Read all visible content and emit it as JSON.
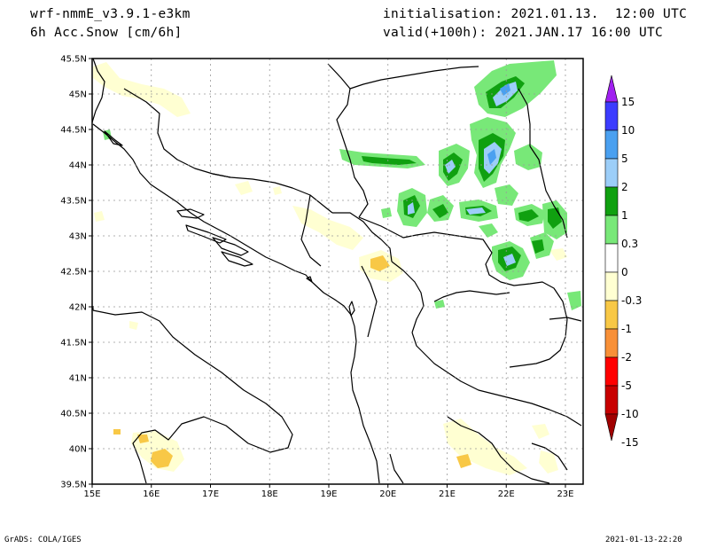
{
  "header": {
    "model": "wrf-nmmE_v3.9.1-e3km",
    "field": "6h Acc.Snow [cm/6h]",
    "init": "initialisation: 2021.01.13.  12:00 UTC",
    "valid": "valid(+100h): 2021.JAN.17 16:00 UTC"
  },
  "axes": {
    "lat_labels": [
      "45.5N",
      "45N",
      "44.5N",
      "44N",
      "43.5N",
      "43N",
      "42.5N",
      "42N",
      "41.5N",
      "41N",
      "40.5N",
      "40N",
      "39.5N"
    ],
    "lon_labels": [
      "15E",
      "16E",
      "17E",
      "18E",
      "19E",
      "20E",
      "21E",
      "22E",
      "23E"
    ],
    "lat_range": [
      39.5,
      45.5
    ],
    "lon_range": [
      15,
      23.3
    ],
    "grid": true
  },
  "colorbar": {
    "labels": [
      "15",
      "10",
      "5",
      "2",
      "1",
      "0.3",
      "0",
      "-0.3",
      "-1",
      "-2",
      "-5",
      "-10",
      "-15"
    ],
    "colors": [
      "#a020f0",
      "#3c3cff",
      "#4aa0f0",
      "#9ccef8",
      "#10a010",
      "#78e878",
      "#ffffff",
      "#ffffd2",
      "#f8c846",
      "#f89038",
      "#ff0000",
      "#c80000",
      "#a00000"
    ]
  },
  "footer": {
    "left": "GrADS: COLA/IGES",
    "right": "2021-01-13-22:20"
  }
}
